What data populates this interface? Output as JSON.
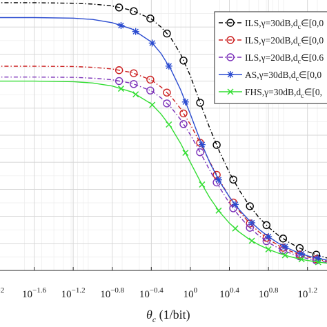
{
  "chart_data": {
    "type": "line",
    "x_scale": "log10",
    "x_axis_label_main": "θ",
    "x_axis_label_sub": "c",
    "x_axis_label_unit": " (1/bit)",
    "xlim": [
      -1.95,
      1.4
    ],
    "ylim": [
      0,
      1
    ],
    "grid": true,
    "minor_grid": true,
    "legend_placement": "top-right",
    "x_ticks": [
      {
        "base": "10",
        "exp": "−2",
        "value": -2.0
      },
      {
        "base": "10",
        "exp": "−1.6",
        "value": -1.6
      },
      {
        "base": "10",
        "exp": "−1.2",
        "value": -1.2
      },
      {
        "base": "10",
        "exp": "−0.8",
        "value": -0.8
      },
      {
        "base": "10",
        "exp": "−0.4",
        "value": -0.4
      },
      {
        "base": "10",
        "exp": "0",
        "value": 0.0
      },
      {
        "base": "10",
        "exp": "0.4",
        "value": 0.4
      },
      {
        "base": "10",
        "exp": "0.8",
        "value": 0.8
      },
      {
        "base": "10",
        "exp": "1.2",
        "value": 1.2
      }
    ],
    "series": [
      {
        "name": "ILS,γ=30dB,d",
        "name_sub": "c",
        "name_rest": "∈[0,0",
        "color": "#000000",
        "dash": "6,3,1.5,3",
        "marker": "circle",
        "x": [
          -2.0,
          -1.6,
          -1.2,
          -1.0,
          -0.8,
          -0.6,
          -0.4,
          -0.3,
          -0.2,
          -0.1,
          0.0,
          0.1,
          0.2,
          0.3,
          0.4,
          0.5,
          0.6,
          0.7,
          0.8,
          0.9,
          1.0,
          1.1,
          1.2,
          1.3,
          1.4
        ],
        "y": [
          0.99,
          0.99,
          0.988,
          0.985,
          0.978,
          0.962,
          0.93,
          0.9,
          0.86,
          0.8,
          0.72,
          0.62,
          0.525,
          0.438,
          0.362,
          0.297,
          0.242,
          0.197,
          0.16,
          0.13,
          0.106,
          0.086,
          0.07,
          0.057,
          0.046
        ],
        "marker_x": [
          -0.73,
          -0.58,
          -0.41,
          -0.24,
          -0.07,
          0.1,
          0.27,
          0.44,
          0.61,
          0.78,
          0.95,
          1.12,
          1.29
        ]
      },
      {
        "name": "ILS,γ=20dB,d",
        "name_sub": "c",
        "name_rest": "∈[0,0",
        "color": "#cc1f1f",
        "dash": "6,3,1.5,3",
        "marker": "circle",
        "x": [
          -2.0,
          -1.6,
          -1.2,
          -1.0,
          -0.8,
          -0.6,
          -0.4,
          -0.3,
          -0.2,
          -0.1,
          0.0,
          0.1,
          0.2,
          0.3,
          0.4,
          0.5,
          0.6,
          0.7,
          0.8,
          0.9,
          1.0,
          1.1,
          1.2,
          1.3,
          1.4
        ],
        "y": [
          0.755,
          0.755,
          0.754,
          0.751,
          0.745,
          0.732,
          0.704,
          0.678,
          0.644,
          0.598,
          0.54,
          0.472,
          0.401,
          0.333,
          0.272,
          0.22,
          0.177,
          0.143,
          0.115,
          0.093,
          0.075,
          0.061,
          0.05,
          0.041,
          0.034
        ],
        "marker_x": [
          -0.73,
          -0.58,
          -0.41,
          -0.24,
          -0.07,
          0.1,
          0.27,
          0.44,
          0.61,
          0.78,
          0.95,
          1.12,
          1.29
        ]
      },
      {
        "name": "ILS,γ=20dB,d",
        "name_sub": "c",
        "name_rest": "∈[0.6",
        "color": "#7a2fb8",
        "dash": "6,3,1.5,3",
        "marker": "circle",
        "x": [
          -2.0,
          -1.6,
          -1.2,
          -1.0,
          -0.8,
          -0.6,
          -0.4,
          -0.3,
          -0.2,
          -0.1,
          0.0,
          0.1,
          0.2,
          0.3,
          0.4,
          0.5,
          0.6,
          0.7,
          0.8,
          0.9,
          1.0,
          1.1,
          1.2,
          1.3,
          1.4
        ],
        "y": [
          0.715,
          0.715,
          0.714,
          0.711,
          0.705,
          0.692,
          0.664,
          0.638,
          0.604,
          0.558,
          0.502,
          0.437,
          0.37,
          0.306,
          0.249,
          0.201,
          0.161,
          0.129,
          0.103,
          0.083,
          0.067,
          0.054,
          0.044,
          0.036,
          0.03
        ],
        "marker_x": [
          -0.73,
          -0.58,
          -0.41,
          -0.24,
          -0.07,
          0.1,
          0.27,
          0.44,
          0.61,
          0.78,
          0.95,
          1.12,
          1.29
        ]
      },
      {
        "name": "AS,γ=30dB,d",
        "name_sub": "c",
        "name_rest": "∈[0,0",
        "color": "#2a4bd0",
        "dash": "",
        "marker": "star",
        "x": [
          -2.0,
          -1.6,
          -1.2,
          -1.0,
          -0.8,
          -0.6,
          -0.4,
          -0.3,
          -0.2,
          -0.1,
          0.0,
          0.1,
          0.2,
          0.3,
          0.4,
          0.5,
          0.6,
          0.7,
          0.8,
          0.9,
          1.0,
          1.1,
          1.2,
          1.3,
          1.4
        ],
        "y": [
          0.935,
          0.935,
          0.933,
          0.928,
          0.916,
          0.893,
          0.845,
          0.802,
          0.744,
          0.668,
          0.578,
          0.482,
          0.398,
          0.328,
          0.272,
          0.225,
          0.186,
          0.153,
          0.125,
          0.101,
          0.082,
          0.066,
          0.054,
          0.045,
          0.038
        ],
        "marker_x": [
          -0.71,
          -0.56,
          -0.39,
          -0.22,
          -0.05,
          0.12,
          0.29,
          0.46,
          0.63,
          0.8,
          0.97,
          1.14,
          1.31
        ]
      },
      {
        "name": "FHS,γ=30dB,d",
        "name_sub": "c",
        "name_rest": "∈[0,",
        "color": "#33dd33",
        "dash": "",
        "marker": "x",
        "x": [
          -2.0,
          -1.6,
          -1.2,
          -1.0,
          -0.8,
          -0.6,
          -0.4,
          -0.3,
          -0.2,
          -0.1,
          0.0,
          0.1,
          0.2,
          0.3,
          0.4,
          0.5,
          0.6,
          0.7,
          0.8,
          0.9,
          1.0,
          1.1,
          1.2,
          1.3,
          1.4
        ],
        "y": [
          0.7,
          0.7,
          0.698,
          0.693,
          0.682,
          0.66,
          0.616,
          0.578,
          0.53,
          0.47,
          0.4,
          0.33,
          0.268,
          0.216,
          0.175,
          0.142,
          0.116,
          0.095,
          0.078,
          0.064,
          0.053,
          0.044,
          0.037,
          0.031,
          0.027
        ],
        "marker_x": [
          -0.71,
          -0.56,
          -0.39,
          -0.22,
          -0.05,
          0.12,
          0.29,
          0.46,
          0.63,
          0.8,
          0.97,
          1.14,
          1.31
        ]
      }
    ]
  }
}
